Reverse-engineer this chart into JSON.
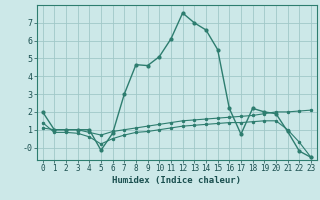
{
  "xlabel": "Humidex (Indice chaleur)",
  "bg_color": "#cce8e8",
  "grid_color": "#a0c8c8",
  "line_color": "#2d7d6f",
  "xlim": [
    -0.5,
    23.5
  ],
  "ylim": [
    -0.7,
    8.0
  ],
  "xticks": [
    0,
    1,
    2,
    3,
    4,
    5,
    6,
    7,
    8,
    9,
    10,
    11,
    12,
    13,
    14,
    15,
    16,
    17,
    18,
    19,
    20,
    21,
    22,
    23
  ],
  "yticks": [
    0,
    1,
    2,
    3,
    4,
    5,
    6,
    7
  ],
  "ytick_labels": [
    "-0",
    "1",
    "2",
    "3",
    "4",
    "5",
    "6",
    "7"
  ],
  "line1_x": [
    0,
    1,
    2,
    3,
    4,
    5,
    6,
    7,
    8,
    9,
    10,
    11,
    12,
    13,
    14,
    15,
    16,
    17,
    18,
    19,
    20,
    21,
    22,
    23
  ],
  "line1_y": [
    2.0,
    1.0,
    1.0,
    1.0,
    1.0,
    -0.15,
    0.8,
    3.0,
    4.65,
    4.6,
    5.1,
    6.1,
    7.55,
    7.0,
    6.6,
    5.5,
    2.2,
    0.75,
    2.2,
    2.0,
    1.9,
    0.9,
    -0.2,
    -0.55
  ],
  "line2_x": [
    0,
    1,
    2,
    3,
    4,
    5,
    6,
    7,
    8,
    9,
    10,
    11,
    12,
    13,
    14,
    15,
    16,
    17,
    18,
    19,
    20,
    21,
    22,
    23
  ],
  "line2_y": [
    1.1,
    1.0,
    1.0,
    1.0,
    0.85,
    0.7,
    0.9,
    1.0,
    1.1,
    1.2,
    1.3,
    1.4,
    1.5,
    1.55,
    1.6,
    1.65,
    1.7,
    1.75,
    1.8,
    1.9,
    2.0,
    2.0,
    2.05,
    2.1
  ],
  "line3_x": [
    0,
    1,
    2,
    3,
    4,
    5,
    6,
    7,
    8,
    9,
    10,
    11,
    12,
    13,
    14,
    15,
    16,
    17,
    18,
    19,
    20,
    21,
    22,
    23
  ],
  "line3_y": [
    1.4,
    0.85,
    0.85,
    0.8,
    0.6,
    0.2,
    0.5,
    0.7,
    0.85,
    0.9,
    1.0,
    1.1,
    1.2,
    1.25,
    1.3,
    1.35,
    1.4,
    1.4,
    1.45,
    1.5,
    1.5,
    1.0,
    0.3,
    -0.55
  ]
}
